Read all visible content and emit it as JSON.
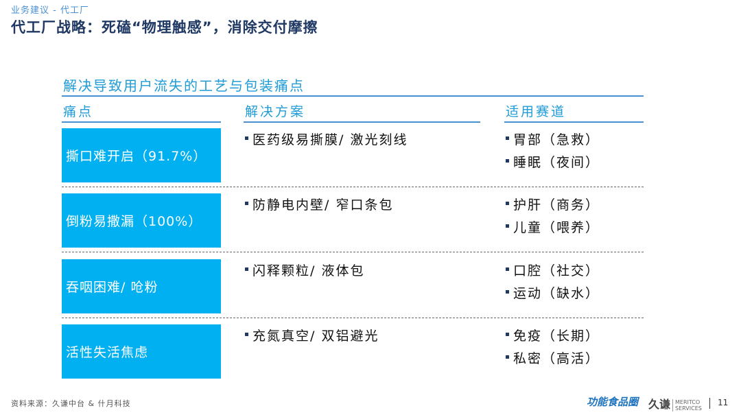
{
  "header": {
    "breadcrumb": "业务建议 - 代工厂",
    "title": "代工厂战略：死磕“物理触感”，消除交付摩擦"
  },
  "table": {
    "subtitle": "解决导致用户流失的工艺与包装痛点",
    "columns": [
      "痛点",
      "解决方案",
      "适用赛道"
    ],
    "rows": [
      {
        "pain": "撕口难开启（91.7%）",
        "solution": "医药级易撕膜/ 激光刻线",
        "tracks": [
          "胃部（急救）",
          "睡眠（夜间）"
        ]
      },
      {
        "pain": "倒粉易撒漏（100%）",
        "solution": "防静电内壁/ 窄口条包",
        "tracks": [
          "护肝（商务）",
          "儿童（喂养）"
        ]
      },
      {
        "pain": "吞咽困难/ 呛粉",
        "solution": "闪释颗粒/ 液体包",
        "tracks": [
          "口腔（社交）",
          "运动（缺水）"
        ]
      },
      {
        "pain": "活性失活焦虑",
        "solution": "充氮真空/ 双铝避光",
        "tracks": [
          "免疫（长期）",
          "私密（高活）"
        ]
      }
    ]
  },
  "footer": {
    "source": "资料来源：久谦中台 & 什月科技",
    "logo1": "功能食品圈",
    "logo2": "久谦",
    "logo2_en1": "MERITCO",
    "logo2_en2": "SERVICES",
    "page": "11"
  },
  "colors": {
    "accent": "#00b0f0",
    "title": "#1f3864",
    "heading": "#1f9bd7"
  }
}
